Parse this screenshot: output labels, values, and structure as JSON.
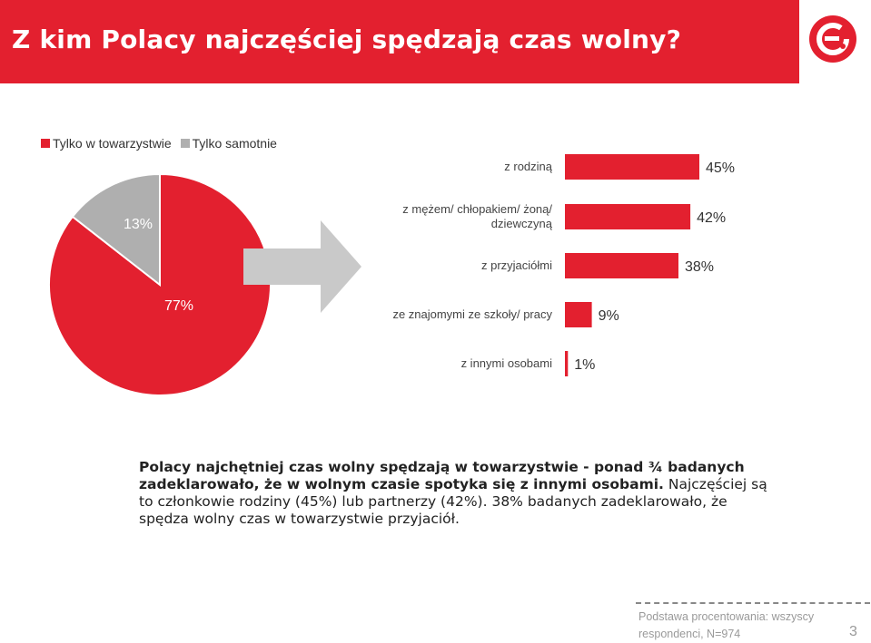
{
  "title": "Z kim Polacy najczęściej spędzają czas wolny?",
  "logo_icon": "e-logo-icon",
  "colors": {
    "accent": "#E3202F",
    "grey": "#AFAFAF",
    "arrow": "#C9C9C9"
  },
  "chart_data": [
    {
      "type": "pie",
      "legend": [
        "Tylko w towarzystwie",
        "Tylko samotnie"
      ],
      "legend_position": "top-left",
      "slices": [
        {
          "label": "Tylko w towarzystwie",
          "value": 77,
          "display": "77%"
        },
        {
          "label": "Tylko samotnie",
          "value": 13,
          "display": "13%"
        }
      ]
    },
    {
      "type": "bar",
      "orientation": "horizontal",
      "categories": [
        "z rodziną",
        "z mężem/ chłopakiem/ żoną/ dziewczyną",
        "z przyjaciółmi",
        "ze znajomymi ze szkoły/ pracy",
        "z innymi osobami"
      ],
      "category_lines": [
        [
          "z rodziną"
        ],
        [
          "z mężem/ chłopakiem/ żoną/",
          "dziewczyną"
        ],
        [
          "z przyjaciółmi"
        ],
        [
          "ze znajomymi ze szkoły/ pracy"
        ],
        [
          "z innymi osobami"
        ]
      ],
      "values": [
        45,
        42,
        38,
        9,
        1
      ],
      "value_labels": [
        "45%",
        "42%",
        "38%",
        "9%",
        "1%"
      ],
      "xlim": [
        0,
        45
      ]
    }
  ],
  "description": {
    "bold": "Polacy najchętniej czas wolny spędzają w towarzystwie - ponad ¾ badanych zadeklarowało, że w wolnym czasie spotyka się z innymi osobami.",
    "normal": " Najczęściej są to członkowie rodziny (45%) lub partnerzy (42%). 38% badanych zadeklarowało, że spędza wolny czas w towarzystwie przyjaciół."
  },
  "footnote": "Podstawa procentowania: wszyscy respondenci, N=974",
  "page_number": "3"
}
